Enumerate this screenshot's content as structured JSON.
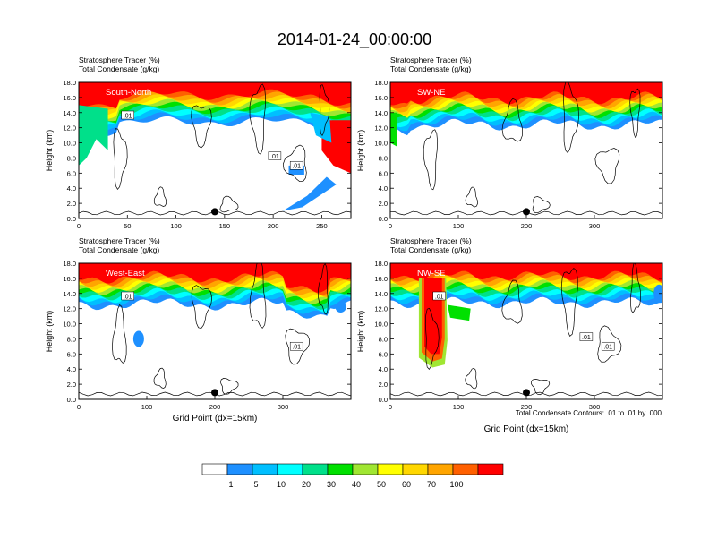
{
  "figure": {
    "title": "2014-01-24_00:00:00",
    "note": "Total Condensate Contours: .01 to .01 by .000"
  },
  "chart_data": [
    {
      "type": "heatmap",
      "label": "South-North",
      "header_line1": "Stratosphere Tracer   (%)",
      "header_line2": "Total Condensate   (g/kg)",
      "ylabel": "Height (km)",
      "xlabel": "",
      "xlim": [
        0,
        280
      ],
      "ylim": [
        0,
        18
      ],
      "xticks": [
        0,
        50,
        100,
        150,
        200,
        250
      ],
      "yticks": [
        "0.0",
        "2.0",
        "4.0",
        "6.0",
        "8.0",
        "10.0",
        "12.0",
        "14.0",
        "16.0",
        "18.0"
      ],
      "contour_labels": [
        ".01",
        ".01",
        ".01"
      ],
      "marker_x": 140
    },
    {
      "type": "heatmap",
      "label": "SW-NE",
      "header_line1": "Stratosphere Tracer   (%)",
      "header_line2": "Total Condensate   (g/kg)",
      "ylabel": "Height (km)",
      "xlabel": "",
      "xlim": [
        0,
        400
      ],
      "ylim": [
        0,
        18
      ],
      "xticks": [
        0,
        100,
        200,
        300
      ],
      "yticks": [
        "0.0",
        "2.0",
        "4.0",
        "6.0",
        "8.0",
        "10.0",
        "12.0",
        "14.0",
        "16.0",
        "18.0"
      ],
      "contour_labels": [],
      "marker_x": 200
    },
    {
      "type": "heatmap",
      "label": "West-East",
      "header_line1": "Stratosphere Tracer   (%)",
      "header_line2": "Total Condensate   (g/kg)",
      "ylabel": "Height (km)",
      "xlabel": "Grid Point (dx=15km)",
      "xlim": [
        0,
        400
      ],
      "ylim": [
        0,
        18
      ],
      "xticks": [
        0,
        100,
        200,
        300
      ],
      "yticks": [
        "0.0",
        "2.0",
        "4.0",
        "6.0",
        "8.0",
        "10.0",
        "12.0",
        "14.0",
        "16.0",
        "18.0"
      ],
      "contour_labels": [
        ".01",
        ".01"
      ],
      "marker_x": 200
    },
    {
      "type": "heatmap",
      "label": "NW-SE",
      "header_line1": "Stratosphere Tracer   (%)",
      "header_line2": "Total Condensate   (g/kg)",
      "ylabel": "Height (km)",
      "xlabel": "Grid Point (dx=15km)",
      "xlim": [
        0,
        400
      ],
      "ylim": [
        0,
        18
      ],
      "xticks": [
        0,
        100,
        200,
        300
      ],
      "yticks": [
        "0.0",
        "2.0",
        "4.0",
        "6.0",
        "8.0",
        "10.0",
        "12.0",
        "14.0",
        "16.0",
        "18.0"
      ],
      "contour_labels": [
        ".01",
        ".01",
        ".01"
      ],
      "marker_x": 200
    }
  ],
  "colorbar": {
    "labels": [
      "1",
      "5",
      "10",
      "20",
      "30",
      "40",
      "50",
      "60",
      "70",
      "100"
    ],
    "colors": [
      "#ffffff",
      "#1e90ff",
      "#00bfff",
      "#00ffff",
      "#00e08a",
      "#00e000",
      "#a0e632",
      "#ffff00",
      "#ffd700",
      "#ffa500",
      "#ff6000",
      "#ff0000"
    ]
  }
}
